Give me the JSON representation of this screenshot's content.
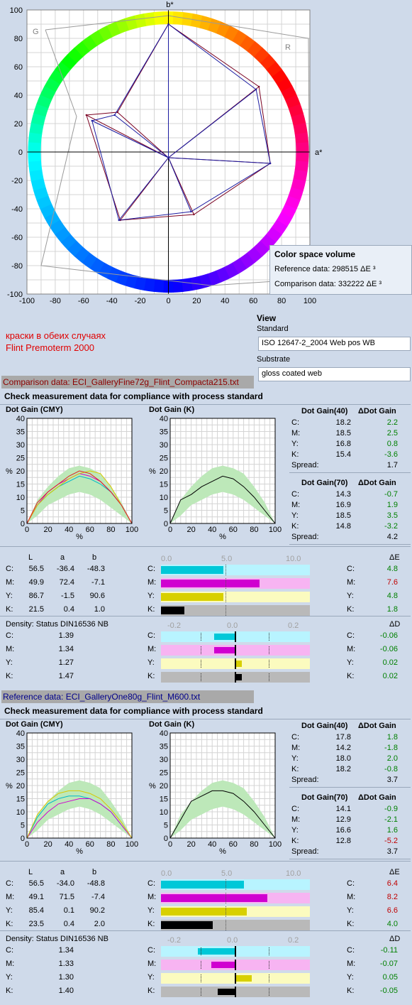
{
  "chart_data": [
    {
      "type": "scatter",
      "xlabel": "a*",
      "ylabel": "b*",
      "xlim": [
        -100,
        100
      ],
      "ylim": [
        -100,
        100
      ],
      "xticks": [
        "-100",
        "-80",
        "-60",
        "-40",
        "-20",
        "0",
        "20",
        "40",
        "60",
        "80",
        "100"
      ],
      "yticks": [
        "100",
        "80",
        "60",
        "40",
        "20",
        "0",
        "-20",
        "-40",
        "-60",
        "-80",
        "-100"
      ],
      "corner_labels": {
        "g": "G",
        "r": "R"
      },
      "series": [
        {
          "color": "#7a0020",
          "points": [
            [
              0,
              90
            ],
            [
              64,
              46
            ],
            [
              72,
              -8
            ],
            [
              18,
              -44
            ],
            [
              -34,
              -48
            ],
            [
              -58,
              26
            ],
            [
              -36,
              28
            ]
          ]
        },
        {
          "color": "#1a1aa0",
          "points": [
            [
              0,
              90
            ],
            [
              62,
              44
            ],
            [
              72,
              -8
            ],
            [
              16,
              -42
            ],
            [
              -35,
              -48
            ],
            [
              -54,
              22
            ],
            [
              -38,
              26
            ]
          ]
        }
      ]
    },
    {
      "type": "line",
      "ylim": [
        0,
        40
      ],
      "yticks": [
        "40",
        "35",
        "30",
        "25",
        "20",
        "15",
        "10",
        "5",
        "0"
      ],
      "xticks": [
        "0",
        "20",
        "40",
        "60",
        "80",
        "100"
      ],
      "xlabel": "%",
      "ylabel": "%",
      "series": [
        {
          "color": "#00b8c8",
          "x": [
            0,
            10,
            20,
            30,
            40,
            50,
            60,
            70,
            80,
            90,
            100
          ],
          "y": [
            0,
            7,
            11,
            14,
            16,
            18,
            17,
            15,
            12,
            7,
            0
          ]
        },
        {
          "color": "#d000d0",
          "x": [
            0,
            10,
            20,
            30,
            40,
            50,
            60,
            70,
            80,
            90,
            100
          ],
          "y": [
            0,
            7,
            12,
            15,
            17,
            19,
            18,
            16,
            12,
            7,
            0
          ]
        },
        {
          "color": "#d8c800",
          "x": [
            0,
            10,
            20,
            30,
            40,
            50,
            60,
            70,
            80,
            90,
            100
          ],
          "y": [
            0,
            7,
            11,
            14,
            17,
            19,
            20,
            19,
            14,
            7,
            0
          ]
        },
        {
          "color": "#e02020",
          "x": [
            0,
            10,
            20,
            30,
            40,
            50,
            60,
            70,
            80,
            90,
            100
          ],
          "y": [
            0,
            8,
            12,
            15,
            18,
            20,
            19,
            16,
            12,
            7,
            0
          ]
        }
      ]
    },
    {
      "type": "line",
      "ylim": [
        0,
        40
      ],
      "yticks": [
        "40",
        "35",
        "30",
        "25",
        "20",
        "15",
        "10",
        "5",
        "0"
      ],
      "xticks": [
        "0",
        "20",
        "40",
        "60",
        "80",
        "100"
      ],
      "xlabel": "%",
      "ylabel": "%",
      "series": [
        {
          "color": "#000000",
          "x": [
            0,
            10,
            20,
            30,
            40,
            50,
            60,
            70,
            80,
            90,
            100
          ],
          "y": [
            0,
            9,
            11,
            14,
            16,
            18,
            17,
            14,
            10,
            5,
            0
          ]
        }
      ]
    },
    {
      "type": "line",
      "ylim": [
        0,
        40
      ],
      "yticks": [
        "40",
        "35",
        "30",
        "25",
        "20",
        "15",
        "10",
        "5",
        "0"
      ],
      "xticks": [
        "0",
        "20",
        "40",
        "60",
        "80",
        "100"
      ],
      "xlabel": "%",
      "ylabel": "%",
      "series": [
        {
          "color": "#00b8c8",
          "x": [
            0,
            10,
            20,
            30,
            40,
            50,
            60,
            70,
            80,
            90,
            100
          ],
          "y": [
            0,
            8,
            13,
            15,
            16,
            16,
            15,
            13,
            10,
            5,
            0
          ]
        },
        {
          "color": "#d000d0",
          "x": [
            0,
            10,
            20,
            30,
            40,
            50,
            60,
            70,
            80,
            90,
            100
          ],
          "y": [
            0,
            6,
            10,
            13,
            14,
            15,
            15,
            13,
            10,
            5,
            0
          ]
        },
        {
          "color": "#d8c800",
          "x": [
            0,
            10,
            20,
            30,
            40,
            50,
            60,
            70,
            80,
            90,
            100
          ],
          "y": [
            0,
            9,
            14,
            17,
            18,
            18,
            17,
            15,
            11,
            6,
            0
          ]
        }
      ]
    },
    {
      "type": "line",
      "ylim": [
        0,
        40
      ],
      "yticks": [
        "40",
        "35",
        "30",
        "25",
        "20",
        "15",
        "10",
        "5",
        "0"
      ],
      "xticks": [
        "0",
        "20",
        "40",
        "60",
        "80",
        "100"
      ],
      "xlabel": "%",
      "ylabel": "%",
      "series": [
        {
          "color": "#000000",
          "x": [
            0,
            10,
            20,
            30,
            40,
            50,
            60,
            70,
            80,
            90,
            100
          ],
          "y": [
            0,
            7,
            14,
            16,
            18,
            18,
            17,
            14,
            10,
            5,
            0
          ]
        }
      ]
    }
  ],
  "volume": {
    "title": "Color space volume",
    "ref": "Reference data: 298515 ΔE ³",
    "comp": "Comparison data: 332222 ΔE ³"
  },
  "view": {
    "title": "View",
    "standard_label": "Standard",
    "standard_value": "ISO 12647-2_2004 Web pos WB",
    "substrate_label": "Substrate",
    "substrate_value": "gloss coated web"
  },
  "note": {
    "line1": "краски в обеих случаях",
    "line2": "Flint Premoterm 2000"
  },
  "sections": [
    {
      "file_label": "Comparison data: ECI_GalleryFine72g_Flint_Compacta215.txt",
      "check_title": "Check measurement data for compliance with process standard",
      "dg_cmy_title": "Dot Gain (CMY)",
      "dg_k_title": "Dot Gain (K)",
      "dg40": {
        "title": "Dot Gain(40)",
        "delta": "ΔDot Gain",
        "rows": [
          {
            "k": "C:",
            "v": "18.2",
            "d": "2.2",
            "dc": "#008000"
          },
          {
            "k": "M:",
            "v": "18.5",
            "d": "2.5",
            "dc": "#008000"
          },
          {
            "k": "Y:",
            "v": "16.8",
            "d": "0.8",
            "dc": "#008000"
          },
          {
            "k": "K:",
            "v": "15.4",
            "d": "-3.6",
            "dc": "#008000"
          }
        ],
        "spread_label": "Spread:",
        "spread": "1.7"
      },
      "dg70": {
        "title": "Dot Gain(70)",
        "delta": "ΔDot Gain",
        "rows": [
          {
            "k": "C:",
            "v": "14.3",
            "d": "-0.7",
            "dc": "#008000"
          },
          {
            "k": "M:",
            "v": "16.9",
            "d": "1.9",
            "dc": "#008000"
          },
          {
            "k": "Y:",
            "v": "18.5",
            "d": "3.5",
            "dc": "#008000"
          },
          {
            "k": "K:",
            "v": "14.8",
            "d": "-3.2",
            "dc": "#008000"
          }
        ],
        "spread_label": "Spread:",
        "spread": "4.2"
      },
      "lab": {
        "h_l": "L",
        "h_a": "a",
        "h_b": "b",
        "rows": [
          {
            "k": "C:",
            "L": "56.5",
            "a": "-36.4",
            "b": "-48.3"
          },
          {
            "k": "M:",
            "L": "49.9",
            "a": "72.4",
            "b": "-7.1"
          },
          {
            "k": "Y:",
            "L": "86.7",
            "a": "-1.5",
            "b": "90.6"
          },
          {
            "k": "K:",
            "L": "21.5",
            "a": "0.4",
            "b": "1.0"
          }
        ]
      },
      "de": {
        "scale": [
          "0.0",
          "5.0",
          "10.0"
        ],
        "title": "ΔE",
        "rows": [
          {
            "k": "C:",
            "v": 4.8,
            "t": "4.8",
            "tc": "#008000"
          },
          {
            "k": "M:",
            "v": 7.6,
            "t": "7.6",
            "tc": "#c00000"
          },
          {
            "k": "Y:",
            "v": 4.8,
            "t": "4.8",
            "tc": "#008000"
          },
          {
            "k": "K:",
            "v": 1.8,
            "t": "1.8",
            "tc": "#008000"
          }
        ]
      },
      "density": {
        "title": "Density: Status DIN16536 NB",
        "scale": [
          "-0.2",
          "0.0",
          "0.2"
        ],
        "dtitle": "ΔD",
        "rows": [
          {
            "k": "C:",
            "v": "1.39",
            "d": -0.06,
            "t": "-0.06"
          },
          {
            "k": "M:",
            "v": "1.34",
            "d": -0.06,
            "t": "-0.06"
          },
          {
            "k": "Y:",
            "v": "1.27",
            "d": 0.02,
            "t": "0.02"
          },
          {
            "k": "K:",
            "v": "1.47",
            "d": 0.02,
            "t": "0.02"
          }
        ]
      }
    },
    {
      "file_label": "Reference data:    ECI_GalleryOne80g_Flint_M600.txt",
      "check_title": "Check measurement data for compliance with process standard",
      "dg_cmy_title": "Dot Gain (CMY)",
      "dg_k_title": "Dot Gain (K)",
      "dg40": {
        "title": "Dot Gain(40)",
        "delta": "ΔDot Gain",
        "rows": [
          {
            "k": "C:",
            "v": "17.8",
            "d": "1.8",
            "dc": "#008000"
          },
          {
            "k": "M:",
            "v": "14.2",
            "d": "-1.8",
            "dc": "#008000"
          },
          {
            "k": "Y:",
            "v": "18.0",
            "d": "2.0",
            "dc": "#008000"
          },
          {
            "k": "K:",
            "v": "18.2",
            "d": "-0.8",
            "dc": "#008000"
          }
        ],
        "spread_label": "Spread:",
        "spread": "3.7"
      },
      "dg70": {
        "title": "Dot Gain(70)",
        "delta": "ΔDot Gain",
        "rows": [
          {
            "k": "C:",
            "v": "14.1",
            "d": "-0.9",
            "dc": "#008000"
          },
          {
            "k": "M:",
            "v": "12.9",
            "d": "-2.1",
            "dc": "#008000"
          },
          {
            "k": "Y:",
            "v": "16.6",
            "d": "1.6",
            "dc": "#008000"
          },
          {
            "k": "K:",
            "v": "12.8",
            "d": "-5.2",
            "dc": "#c00000"
          }
        ],
        "spread_label": "Spread:",
        "spread": "3.7"
      },
      "lab": {
        "h_l": "L",
        "h_a": "a",
        "h_b": "b",
        "rows": [
          {
            "k": "C:",
            "L": "56.5",
            "a": "-34.0",
            "b": "-48.8"
          },
          {
            "k": "M:",
            "L": "49.1",
            "a": "71.5",
            "b": "-7.4"
          },
          {
            "k": "Y:",
            "L": "85.4",
            "a": "0.1",
            "b": "90.2"
          },
          {
            "k": "K:",
            "L": "23.5",
            "a": "0.4",
            "b": "2.0"
          }
        ]
      },
      "de": {
        "scale": [
          "0.0",
          "5.0",
          "10.0"
        ],
        "title": "ΔE",
        "rows": [
          {
            "k": "C:",
            "v": 6.4,
            "t": "6.4",
            "tc": "#c00000"
          },
          {
            "k": "M:",
            "v": 8.2,
            "t": "8.2",
            "tc": "#c00000"
          },
          {
            "k": "Y:",
            "v": 6.6,
            "t": "6.6",
            "tc": "#c00000"
          },
          {
            "k": "K:",
            "v": 4.0,
            "t": "4.0",
            "tc": "#008000"
          }
        ]
      },
      "density": {
        "title": "Density: Status DIN16536 NB",
        "scale": [
          "-0.2",
          "0.0",
          "0.2"
        ],
        "dtitle": "ΔD",
        "rows": [
          {
            "k": "C:",
            "v": "1.34",
            "d": -0.11,
            "t": "-0.11"
          },
          {
            "k": "M:",
            "v": "1.33",
            "d": -0.07,
            "t": "-0.07"
          },
          {
            "k": "Y:",
            "v": "1.30",
            "d": 0.05,
            "t": "0.05"
          },
          {
            "k": "K:",
            "v": "1.40",
            "d": -0.05,
            "t": "-0.05"
          }
        ]
      }
    }
  ],
  "colors": {
    "cyan": "#00c8d8",
    "magenta": "#d000d0",
    "yellow": "#d8d000",
    "black": "#000000",
    "cyan_bg": "#b8f4ff",
    "magenta_bg": "#f7b4f2",
    "yellow_bg": "#fbfbbf",
    "black_bg": "#b9b9b9"
  }
}
